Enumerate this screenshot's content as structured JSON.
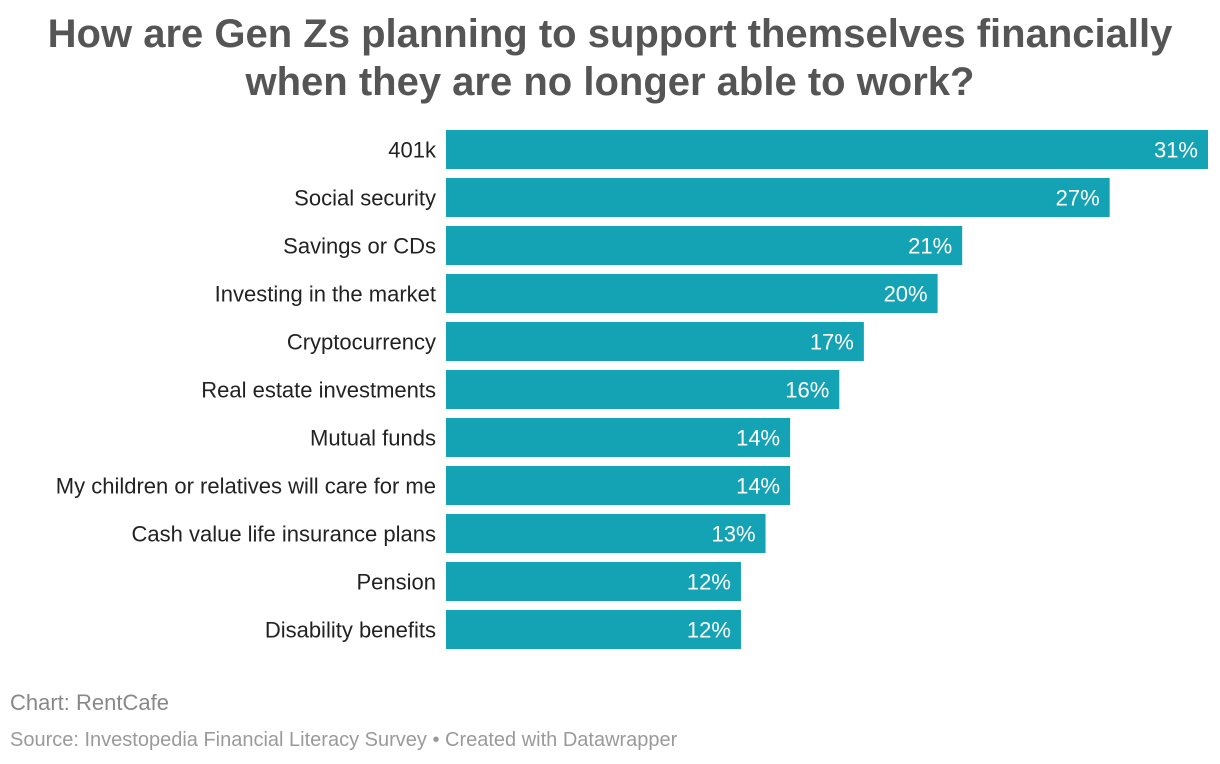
{
  "header": {
    "title_line1": "How are Gen Zs planning to support themselves financially",
    "title_line2": "when they are no longer able to work?"
  },
  "chart_data": {
    "type": "bar",
    "orientation": "horizontal",
    "title": "How are Gen Zs planning to support themselves financially when they are no longer able to work?",
    "categories": [
      "401k",
      "Social security",
      "Savings or CDs",
      "Investing in the market",
      "Cryptocurrency",
      "Real estate investments",
      "Mutual funds",
      "My children or relatives will care for me",
      "Cash value life insurance plans",
      "Pension",
      "Disability benefits"
    ],
    "values": [
      31,
      27,
      21,
      20,
      17,
      16,
      14,
      14,
      13,
      12,
      12
    ],
    "value_labels": [
      "31%",
      "27%",
      "21%",
      "20%",
      "17%",
      "16%",
      "14%",
      "14%",
      "13%",
      "12%",
      "12%"
    ],
    "unit": "%",
    "xlabel": "",
    "ylabel": "",
    "xlim": [
      0,
      31
    ],
    "grid": false,
    "bar_color": "#14a3b4"
  },
  "footer": {
    "chart_credit": "Chart: RentCafe",
    "source": "Source: Investopedia Financial Literacy Survey • Created with Datawrapper"
  }
}
